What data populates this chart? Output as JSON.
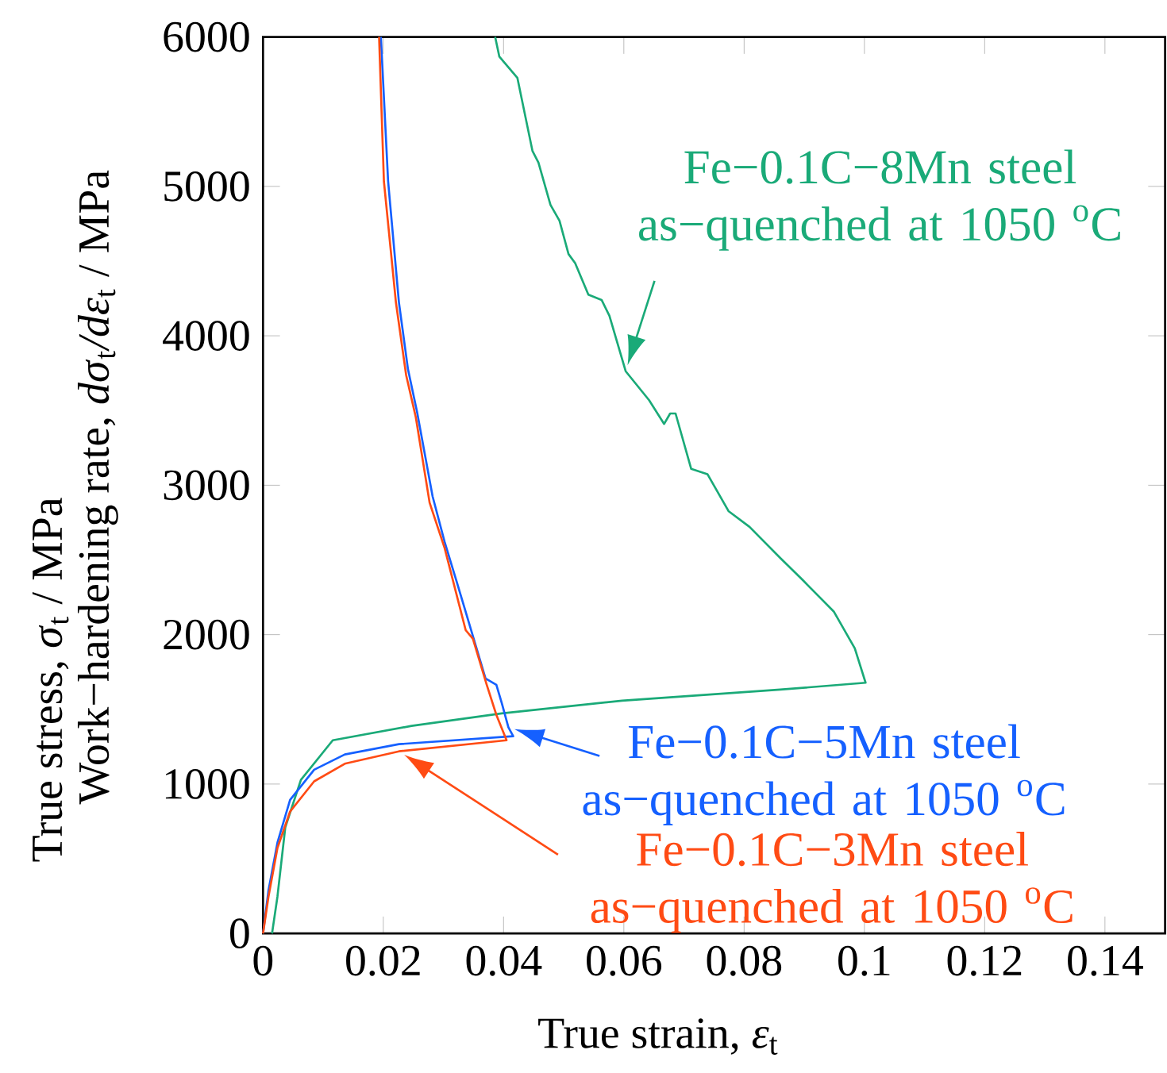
{
  "chart_data": {
    "type": "line",
    "xlabel": "True strain, *ε*$_{t}$",
    "ylabel": "True stress, *σ*$_{t}$ / MPa",
    "annotations": [
      "Work−hardening rate, *dσ*$_{t}$*/dε*$_{t}$ / MPa"
    ],
    "xlim": [
      0,
      0.15
    ],
    "ylim": [
      0,
      6000
    ],
    "xticks": [
      0,
      0.02,
      0.04,
      0.06,
      0.08,
      0.1,
      0.12,
      0.14
    ],
    "yticks": [
      0,
      1000,
      2000,
      3000,
      4000,
      5000,
      6000
    ],
    "grid": false,
    "legend": "right",
    "marker": "none",
    "line_style": "solid",
    "series": [
      {
        "name": "Fe−0.1C−8Mn steel as−quenched at 1050 $^{o}$C",
        "color": "#1aaa78",
        "x": [
          0.0015,
          0.0024,
          0.0037,
          0.0063,
          0.0116,
          0.0247,
          0.0397,
          0.0597,
          0.086,
          0.1002,
          0.0984,
          0.0949,
          0.0897,
          0.0861,
          0.0809,
          0.0774,
          0.0739,
          0.0712,
          0.0686,
          0.0677,
          0.0667,
          0.0642,
          0.0603,
          0.0576,
          0.0563,
          0.0541,
          0.0519,
          0.0508,
          0.0493,
          0.0478,
          0.0458,
          0.0448,
          0.0423,
          0.0393,
          0.0386
        ],
        "values": [
          0,
          247,
          710,
          1028,
          1293,
          1389,
          1473,
          1558,
          1632,
          1678,
          1908,
          2155,
          2367,
          2509,
          2721,
          2827,
          3074,
          3109,
          3480,
          3480,
          3410,
          3569,
          3763,
          4134,
          4240,
          4275,
          4487,
          4547,
          4770,
          4876,
          5159,
          5238,
          5726,
          5868,
          6000
        ]
      },
      {
        "name": "Fe−0.1C−5Mn steel as−quenched at 1050 $^{o}$C",
        "color": "#1560ff",
        "x": [
          0,
          0.0009,
          0.0024,
          0.0045,
          0.0085,
          0.0136,
          0.0226,
          0.0416,
          0.0408,
          0.0397,
          0.0388,
          0.037,
          0.0352,
          0.0322,
          0.0302,
          0.0282,
          0.0256,
          0.0241,
          0.0226,
          0.0208,
          0.0196
        ],
        "values": [
          0,
          286,
          608,
          894,
          1096,
          1198,
          1267,
          1320,
          1380,
          1542,
          1664,
          1707,
          1950,
          2355,
          2620,
          2925,
          3493,
          3777,
          4223,
          5035,
          6000
        ]
      },
      {
        "name": "Fe−0.1C−3Mn steel as−quenched at 1050 $^{o}$C",
        "color": "#ff4b14",
        "x": [
          0,
          0.0009,
          0.0024,
          0.0045,
          0.0085,
          0.0136,
          0.0226,
          0.0405,
          0.0388,
          0.0372,
          0.0349,
          0.0337,
          0.0302,
          0.0277,
          0.0254,
          0.0238,
          0.0221,
          0.0201,
          0.0193
        ],
        "values": [
          0,
          244,
          572,
          816,
          1018,
          1136,
          1219,
          1293,
          1463,
          1664,
          1972,
          2030,
          2579,
          2883,
          3456,
          3736,
          4223,
          5035,
          6000
        ]
      }
    ]
  }
}
